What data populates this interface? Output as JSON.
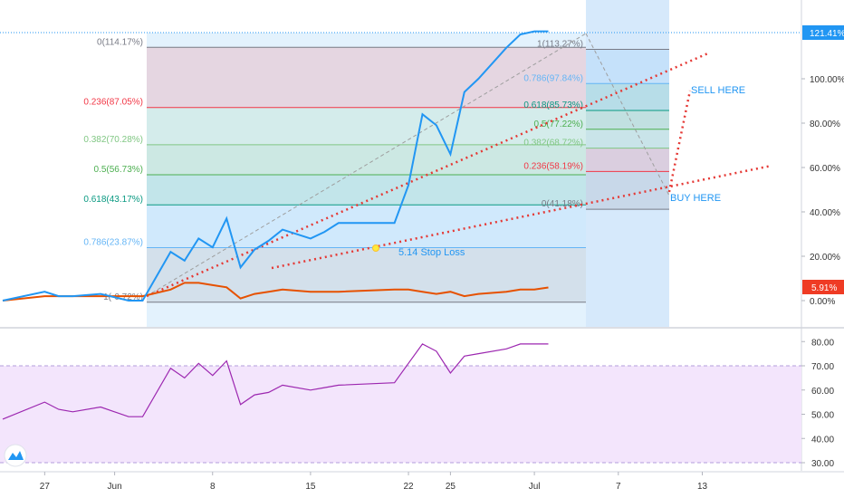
{
  "chart_data": [
    {
      "type": "line",
      "title": "",
      "ylabel": "",
      "y_unit": "%",
      "grid": false,
      "x_ticks": [
        "27",
        "Jun",
        "8",
        "15",
        "22",
        "25",
        "Jul",
        "7",
        "13"
      ],
      "y_ticks": [
        "0.00%",
        "20.00%",
        "40.00%",
        "60.00%",
        "80.00%",
        "100.00%"
      ],
      "last_value_labels": {
        "main": "121.41%",
        "compare": "5.91%"
      },
      "series": [
        {
          "name": "",
          "color": "#2196f3",
          "x": [
            "May 24",
            "May 27",
            "May 28",
            "May 29",
            "May 31",
            "Jun 2",
            "Jun 3",
            "Jun 5",
            "Jun 6",
            "Jun 7",
            "Jun 8",
            "Jun 9",
            "Jun 10",
            "Jun 11",
            "Jun 12",
            "Jun 13",
            "Jun 15",
            "Jun 16",
            "Jun 17",
            "Jun 21",
            "Jun 22",
            "Jun 23",
            "Jun 24",
            "Jun 25",
            "Jun 26",
            "Jun 27",
            "Jun 29",
            "Jun 30",
            "Jul 1",
            "Jul 2"
          ],
          "values": [
            0,
            4,
            2,
            2,
            3,
            0,
            0,
            22,
            18,
            28,
            24,
            37,
            15,
            23,
            27,
            32,
            28,
            31,
            35,
            35,
            52,
            84,
            79,
            66,
            94,
            100,
            114,
            120,
            121.4,
            121.4
          ]
        },
        {
          "name": "",
          "color": "#e65100",
          "x": [
            "May 24",
            "May 27",
            "May 29",
            "May 31",
            "Jun 2",
            "Jun 3",
            "Jun 5",
            "Jun 6",
            "Jun 7",
            "Jun 8",
            "Jun 9",
            "Jun 10",
            "Jun 11",
            "Jun 12",
            "Jun 13",
            "Jun 15",
            "Jun 16",
            "Jun 17",
            "Jun 21",
            "Jun 22",
            "Jun 23",
            "Jun 24",
            "Jun 25",
            "Jun 26",
            "Jun 27",
            "Jun 29",
            "Jun 30",
            "Jul 1",
            "Jul 2"
          ],
          "values": [
            0,
            2,
            2,
            2,
            2,
            2,
            5,
            8,
            8,
            7,
            6,
            1,
            3,
            4,
            5,
            4,
            4,
            4,
            5,
            5,
            4,
            3,
            4,
            2,
            3,
            4,
            5,
            5,
            5.9
          ]
        }
      ],
      "fib_retracement_left": {
        "levels": [
          {
            "label": "0(114.17%)",
            "color": "#787b86"
          },
          {
            "label": "0.236(87.05%)",
            "color": "#f23645"
          },
          {
            "label": "0.382(70.28%)",
            "color": "#81c784"
          },
          {
            "label": "0.5(56.73%)",
            "color": "#4caf50"
          },
          {
            "label": "0.618(43.17%)",
            "color": "#089981"
          },
          {
            "label": "0.786(23.87%)",
            "color": "#64b5f6"
          },
          {
            "label": "1(-0.72%)",
            "color": "#787b86"
          }
        ]
      },
      "fib_retracement_right": {
        "levels": [
          {
            "label": "1(113.27%)",
            "color": "#787b86"
          },
          {
            "label": "0.786(97.84%)",
            "color": "#64b5f6"
          },
          {
            "label": "0.618(85.73%)",
            "color": "#089981"
          },
          {
            "label": "0.5(77.22%)",
            "color": "#4caf50"
          },
          {
            "label": "0.382(68.72%)",
            "color": "#81c784"
          },
          {
            "label": "0.236(58.19%)",
            "color": "#f23645"
          },
          {
            "label": "0(41.18%)",
            "color": "#787b86"
          }
        ]
      },
      "annotations": [
        "SELL HERE",
        "BUY HERE",
        "5.14 Stop Loss"
      ]
    },
    {
      "type": "line",
      "title": "",
      "grid": false,
      "y_ticks": [
        "30.00",
        "40.00",
        "50.00",
        "60.00",
        "70.00",
        "80.00"
      ],
      "ylim": [
        25,
        85
      ],
      "band": [
        30,
        70
      ],
      "series": [
        {
          "name": "",
          "color": "#9c27b0",
          "x": [
            "May 24",
            "May 27",
            "May 28",
            "May 29",
            "May 31",
            "Jun 2",
            "Jun 3",
            "Jun 5",
            "Jun 6",
            "Jun 7",
            "Jun 8",
            "Jun 9",
            "Jun 10",
            "Jun 11",
            "Jun 12",
            "Jun 13",
            "Jun 15",
            "Jun 16",
            "Jun 17",
            "Jun 21",
            "Jun 22",
            "Jun 23",
            "Jun 24",
            "Jun 25",
            "Jun 26",
            "Jun 27",
            "Jun 29",
            "Jun 30",
            "Jul 1",
            "Jul 2"
          ],
          "values": [
            48,
            55,
            52,
            51,
            53,
            49,
            49,
            69,
            65,
            71,
            66,
            72,
            54,
            58,
            59,
            62,
            60,
            61,
            62,
            63,
            71,
            79,
            76,
            67,
            74,
            75,
            77,
            79,
            79,
            79
          ]
        }
      ]
    }
  ]
}
